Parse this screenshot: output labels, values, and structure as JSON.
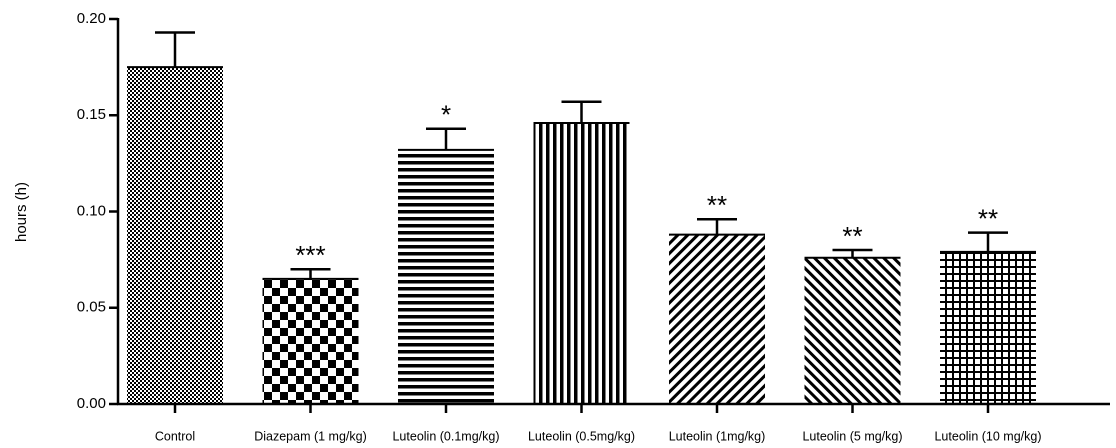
{
  "chart_data": {
    "type": "bar",
    "ylabel": "hours (h)",
    "categories": [
      "Control",
      "Diazepam (1 mg/kg)",
      "Luteolin (0.1mg/kg)",
      "Luteolin (0.5mg/kg)",
      "Luteolin (1mg/kg)",
      "Luteolin (5 mg/kg)",
      "Luteolin (10 mg/kg)"
    ],
    "values": [
      0.175,
      0.065,
      0.132,
      0.146,
      0.088,
      0.076,
      0.079
    ],
    "errors": [
      0.018,
      0.005,
      0.011,
      0.011,
      0.008,
      0.004,
      0.01
    ],
    "significance": [
      null,
      "***",
      "*",
      null,
      "**",
      "**",
      "**"
    ],
    "color": "#000000",
    "ylim": [
      0,
      0.2
    ],
    "yticks": [
      {
        "value": 0,
        "label": "0.00"
      },
      {
        "value": 0.05,
        "label": "0.05"
      },
      {
        "value": 0.1,
        "label": "0.10"
      },
      {
        "value": 0.15,
        "label": "0.15"
      },
      {
        "value": 0.2,
        "label": "0.20"
      }
    ]
  }
}
